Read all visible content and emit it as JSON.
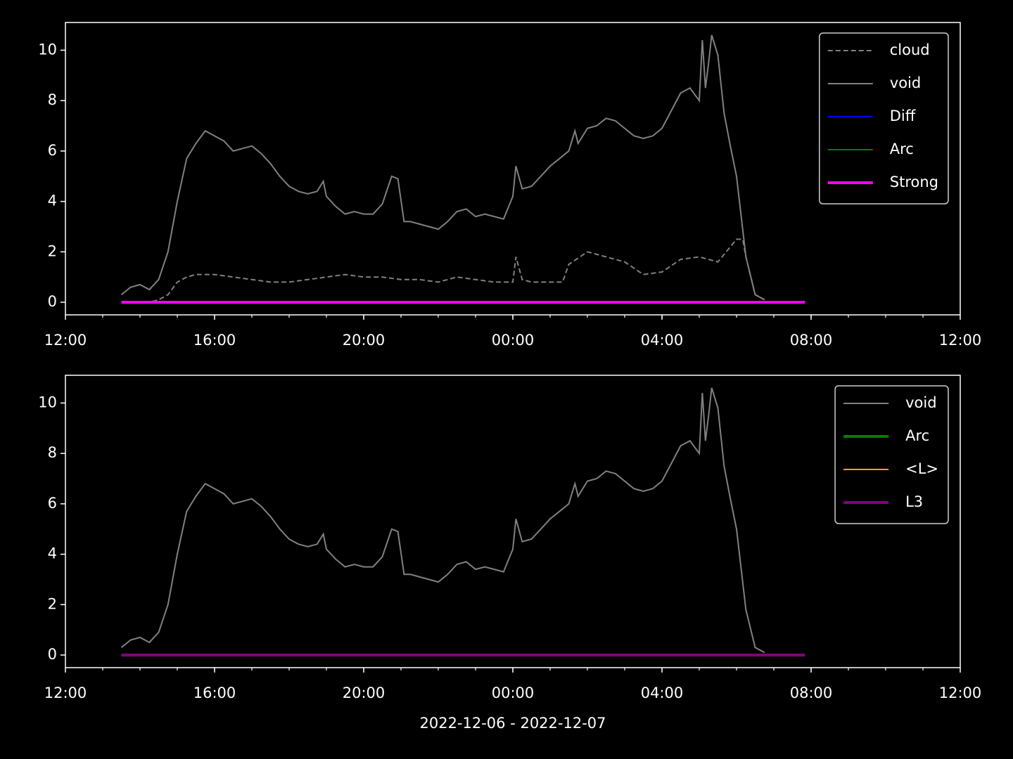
{
  "chart_data": [
    {
      "type": "line",
      "legend": "upper right",
      "xticks": [
        "12:00",
        "16:00",
        "20:00",
        "00:00",
        "04:00",
        "08:00",
        "12:00"
      ],
      "ylim": [
        -0.5,
        11.1
      ],
      "yticks": [
        0,
        2,
        4,
        6,
        8,
        10
      ],
      "series": [
        {
          "name": "cloud",
          "color": "#808080",
          "linestyle": "dashed",
          "linewidth": 2,
          "x": [
            "13:30",
            "14:15",
            "14:30",
            "14:45",
            "15:00",
            "15:15",
            "15:30",
            "16:00",
            "16:30",
            "17:00",
            "17:30",
            "18:00",
            "18:30",
            "19:00",
            "19:30",
            "20:00",
            "20:30",
            "21:00",
            "21:30",
            "22:00",
            "22:30",
            "23:00",
            "23:30",
            "00:00",
            "00:05",
            "00:15",
            "00:30",
            "01:00",
            "01:20",
            "01:30",
            "02:00",
            "02:30",
            "03:00",
            "03:30",
            "04:00",
            "04:30",
            "05:00",
            "05:30",
            "06:00",
            "06:10",
            "06:15",
            "06:30",
            "06:45"
          ],
          "values": [
            0,
            0,
            0.1,
            0.3,
            0.8,
            1.0,
            1.1,
            1.1,
            1.0,
            0.9,
            0.8,
            0.8,
            0.9,
            1.0,
            1.1,
            1.0,
            1.0,
            0.9,
            0.9,
            0.8,
            1.0,
            0.9,
            0.8,
            0.8,
            1.8,
            0.9,
            0.8,
            0.8,
            0.8,
            1.5,
            2.0,
            1.8,
            1.6,
            1.1,
            1.2,
            1.7,
            1.8,
            1.6,
            2.5,
            2.5,
            1.8,
            0.3,
            0.1
          ]
        },
        {
          "name": "void",
          "color": "#808080",
          "linestyle": "solid",
          "linewidth": 2,
          "x": [
            "13:30",
            "13:45",
            "14:00",
            "14:15",
            "14:30",
            "14:45",
            "15:00",
            "15:15",
            "15:30",
            "15:45",
            "16:00",
            "16:15",
            "16:30",
            "16:45",
            "17:00",
            "17:15",
            "17:30",
            "17:45",
            "18:00",
            "18:15",
            "18:30",
            "18:45",
            "18:55",
            "19:00",
            "19:15",
            "19:30",
            "19:45",
            "20:00",
            "20:15",
            "20:30",
            "20:45",
            "20:55",
            "21:05",
            "21:15",
            "21:30",
            "21:45",
            "22:00",
            "22:15",
            "22:30",
            "22:45",
            "23:00",
            "23:15",
            "23:30",
            "23:45",
            "00:00",
            "00:05",
            "00:15",
            "00:30",
            "00:45",
            "01:00",
            "01:15",
            "01:30",
            "01:40",
            "01:45",
            "02:00",
            "02:15",
            "02:30",
            "02:45",
            "03:00",
            "03:15",
            "03:30",
            "03:45",
            "04:00",
            "04:15",
            "04:30",
            "04:45",
            "05:00",
            "05:05",
            "05:10",
            "05:15",
            "05:20",
            "05:30",
            "05:40",
            "05:50",
            "06:00",
            "06:15",
            "06:30",
            "06:45"
          ],
          "values": [
            0.3,
            0.6,
            0.7,
            0.5,
            0.9,
            2.0,
            4.0,
            5.7,
            6.3,
            6.8,
            6.6,
            6.4,
            6.0,
            6.1,
            6.2,
            5.9,
            5.5,
            5.0,
            4.6,
            4.4,
            4.3,
            4.4,
            4.8,
            4.2,
            3.8,
            3.5,
            3.6,
            3.5,
            3.5,
            3.9,
            5.0,
            4.9,
            3.2,
            3.2,
            3.1,
            3.0,
            2.9,
            3.2,
            3.6,
            3.7,
            3.4,
            3.5,
            3.4,
            3.3,
            4.2,
            5.4,
            4.5,
            4.6,
            5.0,
            5.4,
            5.7,
            6.0,
            6.8,
            6.3,
            6.9,
            7.0,
            7.3,
            7.2,
            6.9,
            6.6,
            6.5,
            6.6,
            6.9,
            7.6,
            8.3,
            8.5,
            8.0,
            10.4,
            8.5,
            9.5,
            10.6,
            9.8,
            7.5,
            6.2,
            5.0,
            1.8,
            0.3,
            0.1
          ]
        },
        {
          "name": "Diff",
          "color": "#0000ff",
          "linestyle": "solid",
          "linewidth": 2,
          "x": [
            "13:30",
            "07:50"
          ],
          "values": [
            0,
            0
          ]
        },
        {
          "name": "Arc",
          "color": "#008000",
          "linestyle": "solid",
          "linewidth": 2,
          "x": [
            "13:30",
            "07:50"
          ],
          "values": [
            0,
            0
          ]
        },
        {
          "name": "Strong",
          "color": "#ff00ff",
          "linestyle": "solid",
          "linewidth": 4,
          "x": [
            "13:30",
            "07:50"
          ],
          "values": [
            0,
            0
          ]
        }
      ]
    },
    {
      "type": "line",
      "legend": "upper right",
      "xlabel": "2022-12-06 - 2022-12-07",
      "xticks": [
        "12:00",
        "16:00",
        "20:00",
        "00:00",
        "04:00",
        "08:00",
        "12:00"
      ],
      "ylim": [
        -0.5,
        11.1
      ],
      "yticks": [
        0,
        2,
        4,
        6,
        8,
        10
      ],
      "series": [
        {
          "name": "void",
          "color": "#808080",
          "linestyle": "solid",
          "linewidth": 2,
          "x": [
            "13:30",
            "13:45",
            "14:00",
            "14:15",
            "14:30",
            "14:45",
            "15:00",
            "15:15",
            "15:30",
            "15:45",
            "16:00",
            "16:15",
            "16:30",
            "16:45",
            "17:00",
            "17:15",
            "17:30",
            "17:45",
            "18:00",
            "18:15",
            "18:30",
            "18:45",
            "18:55",
            "19:00",
            "19:15",
            "19:30",
            "19:45",
            "20:00",
            "20:15",
            "20:30",
            "20:45",
            "20:55",
            "21:05",
            "21:15",
            "21:30",
            "21:45",
            "22:00",
            "22:15",
            "22:30",
            "22:45",
            "23:00",
            "23:15",
            "23:30",
            "23:45",
            "00:00",
            "00:05",
            "00:15",
            "00:30",
            "00:45",
            "01:00",
            "01:15",
            "01:30",
            "01:40",
            "01:45",
            "02:00",
            "02:15",
            "02:30",
            "02:45",
            "03:00",
            "03:15",
            "03:30",
            "03:45",
            "04:00",
            "04:15",
            "04:30",
            "04:45",
            "05:00",
            "05:05",
            "05:10",
            "05:15",
            "05:20",
            "05:30",
            "05:40",
            "05:50",
            "06:00",
            "06:15",
            "06:30",
            "06:45"
          ],
          "values": [
            0.3,
            0.6,
            0.7,
            0.5,
            0.9,
            2.0,
            4.0,
            5.7,
            6.3,
            6.8,
            6.6,
            6.4,
            6.0,
            6.1,
            6.2,
            5.9,
            5.5,
            5.0,
            4.6,
            4.4,
            4.3,
            4.4,
            4.8,
            4.2,
            3.8,
            3.5,
            3.6,
            3.5,
            3.5,
            3.9,
            5.0,
            4.9,
            3.2,
            3.2,
            3.1,
            3.0,
            2.9,
            3.2,
            3.6,
            3.7,
            3.4,
            3.5,
            3.4,
            3.3,
            4.2,
            5.4,
            4.5,
            4.6,
            5.0,
            5.4,
            5.7,
            6.0,
            6.8,
            6.3,
            6.9,
            7.0,
            7.3,
            7.2,
            6.9,
            6.6,
            6.5,
            6.6,
            6.9,
            7.6,
            8.3,
            8.5,
            8.0,
            10.4,
            8.5,
            9.5,
            10.6,
            9.8,
            7.5,
            6.2,
            5.0,
            1.8,
            0.3,
            0.1
          ]
        },
        {
          "name": "Arc",
          "color": "#008000",
          "linestyle": "solid",
          "linewidth": 4,
          "x": [
            "13:30",
            "07:50"
          ],
          "values": [
            0,
            0
          ]
        },
        {
          "name": "<L>",
          "color": "#ffa500",
          "linestyle": "solid",
          "linewidth": 2,
          "x": [
            "13:30",
            "07:50"
          ],
          "values": [
            0,
            0
          ]
        },
        {
          "name": "L3",
          "color": "#800080",
          "linestyle": "solid",
          "linewidth": 4,
          "x": [
            "13:30",
            "07:50"
          ],
          "values": [
            0,
            0
          ]
        }
      ]
    }
  ]
}
